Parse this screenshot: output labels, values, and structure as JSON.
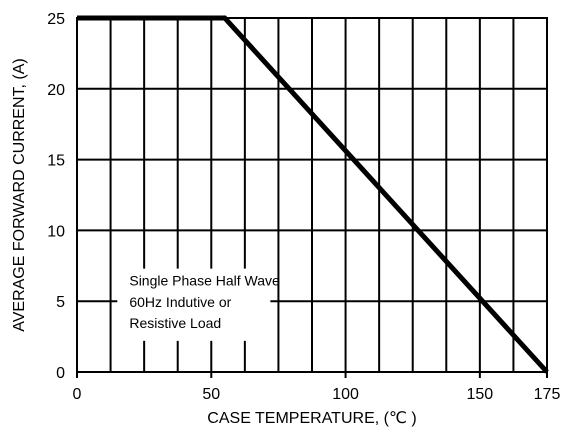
{
  "chart_data": {
    "type": "line",
    "xlabel": "CASE TEMPERATURE, (℃ )",
    "ylabel": "AVERAGE FORWARD  CURRENT, (A)",
    "xlim": [
      0,
      175
    ],
    "ylim": [
      0,
      25
    ],
    "xticks": [
      0,
      50,
      100,
      150,
      175
    ],
    "yticks": [
      0,
      5,
      10,
      15,
      20,
      25
    ],
    "vertical_gridlines_at": [
      12.5,
      25,
      37.5,
      50,
      62.5,
      75,
      87.5,
      100,
      112.5,
      125,
      137.5,
      150,
      162.5
    ],
    "grid": true,
    "series": [
      {
        "x": [
          0,
          55,
          175
        ],
        "y": [
          25,
          25,
          0
        ]
      }
    ],
    "annotation": [
      "Single Phase Half Wave",
      "60Hz Indutive or",
      "Resistive Load"
    ]
  }
}
